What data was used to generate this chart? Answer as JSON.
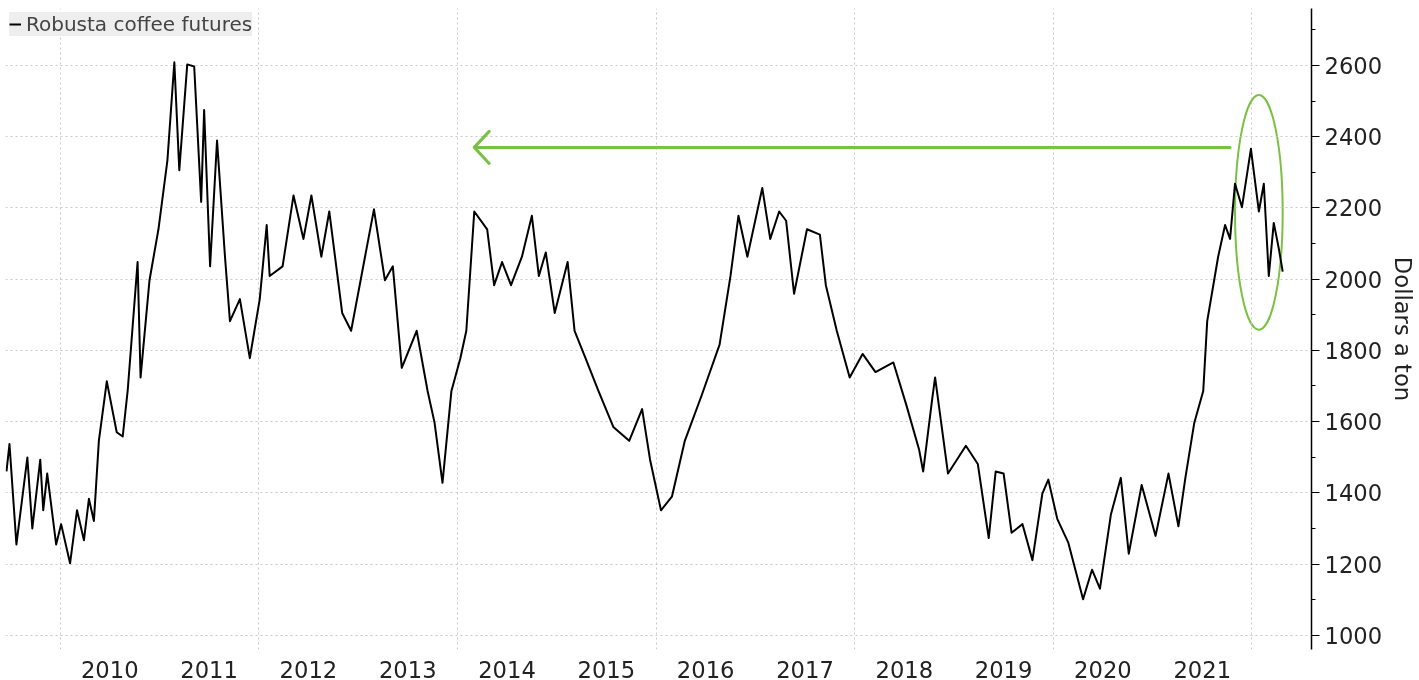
{
  "chart_data": {
    "type": "line",
    "ylabel": "Dollars a ton",
    "x": [
      2009.46,
      2009.49,
      2009.56,
      2009.67,
      2009.72,
      2009.8,
      2009.83,
      2009.87,
      2009.96,
      2010.01,
      2010.1,
      2010.17,
      2010.24,
      2010.29,
      2010.34,
      2010.39,
      2010.47,
      2010.57,
      2010.63,
      2010.68,
      2010.78,
      2010.81,
      2010.9,
      2010.99,
      2011.08,
      2011.15,
      2011.2,
      2011.28,
      2011.35,
      2011.42,
      2011.45,
      2011.51,
      2011.58,
      2011.66,
      2011.71,
      2011.81,
      2011.91,
      2012.01,
      2012.08,
      2012.11,
      2012.24,
      2012.35,
      2012.45,
      2012.53,
      2012.63,
      2012.71,
      2012.84,
      2012.93,
      2013.07,
      2013.16,
      2013.27,
      2013.35,
      2013.44,
      2013.59,
      2013.7,
      2013.77,
      2013.85,
      2013.94,
      2014.03,
      2014.09,
      2014.17,
      2014.3,
      2014.37,
      2014.45,
      2014.54,
      2014.65,
      2014.75,
      2014.82,
      2014.89,
      2014.98,
      2015.11,
      2015.18,
      2015.29,
      2015.42,
      2015.57,
      2015.73,
      2015.86,
      2015.94,
      2016.05,
      2016.16,
      2016.29,
      2016.46,
      2016.64,
      2016.75,
      2016.83,
      2016.92,
      2017.07,
      2017.15,
      2017.24,
      2017.31,
      2017.39,
      2017.52,
      2017.65,
      2017.71,
      2017.82,
      2017.95,
      2018.08,
      2018.21,
      2018.39,
      2018.52,
      2018.65,
      2018.69,
      2018.78,
      2018.81,
      2018.94,
      2019.12,
      2019.24,
      2019.35,
      2019.42,
      2019.5,
      2019.58,
      2019.69,
      2019.79,
      2019.89,
      2019.95,
      2020.04,
      2020.15,
      2020.3,
      2020.39,
      2020.47,
      2020.58,
      2020.68,
      2020.76,
      2020.89,
      2021.03,
      2021.16,
      2021.26,
      2021.33,
      2021.42,
      2021.51,
      2021.55,
      2021.66,
      2021.73,
      2021.78,
      2021.83,
      2021.9,
      2021.99,
      2022.07,
      2022.12,
      2022.17,
      2022.22,
      2022.27,
      2022.31
    ],
    "series": [
      {
        "name": "Robusta coffee futures",
        "color": "#000000",
        "values": [
          1460,
          1537,
          1255,
          1499,
          1300,
          1493,
          1351,
          1454,
          1255,
          1312,
          1202,
          1351,
          1267,
          1383,
          1321,
          1546,
          1713,
          1570,
          1558,
          1686,
          2048,
          1724,
          1997,
          2140,
          2333,
          2609,
          2306,
          2603,
          2597,
          2217,
          2475,
          2036,
          2389,
          2063,
          1882,
          1944,
          1778,
          1944,
          2152,
          2009,
          2036,
          2235,
          2113,
          2235,
          2063,
          2190,
          1905,
          1855,
          2063,
          2196,
          1997,
          2036,
          1751,
          1855,
          1686,
          1597,
          1428,
          1686,
          1778,
          1855,
          2190,
          2140,
          1983,
          2048,
          1983,
          2063,
          2178,
          2009,
          2075,
          1905,
          2048,
          1855,
          1778,
          1686,
          1585,
          1546,
          1635,
          1493,
          1351,
          1389,
          1546,
          1674,
          1816,
          2009,
          2178,
          2063,
          2256,
          2113,
          2190,
          2164,
          1959,
          2140,
          2125,
          1983,
          1855,
          1724,
          1790,
          1739,
          1766,
          1647,
          1520,
          1460,
          1662,
          1724,
          1454,
          1532,
          1481,
          1273,
          1460,
          1454,
          1288,
          1312,
          1211,
          1398,
          1437,
          1327,
          1261,
          1101,
          1184,
          1131,
          1339,
          1442,
          1229,
          1422,
          1279,
          1454,
          1306,
          1442,
          1597,
          1686,
          1882,
          2063,
          2152,
          2113,
          2268,
          2202,
          2366,
          2190,
          2268,
          2009,
          2158,
          2087,
          2021
        ]
      }
    ],
    "xlim": [
      2009.45,
      2022.6
    ],
    "xticks": [
      {
        "value": 2010.5,
        "label": "2010"
      },
      {
        "value": 2011.5,
        "label": "2011"
      },
      {
        "value": 2012.5,
        "label": "2012"
      },
      {
        "value": 2013.5,
        "label": "2013"
      },
      {
        "value": 2014.5,
        "label": "2014"
      },
      {
        "value": 2015.5,
        "label": "2015"
      },
      {
        "value": 2016.5,
        "label": "2016"
      },
      {
        "value": 2017.5,
        "label": "2017"
      },
      {
        "value": 2018.5,
        "label": "2018"
      },
      {
        "value": 2019.5,
        "label": "2019"
      },
      {
        "value": 2020.5,
        "label": "2020"
      },
      {
        "value": 2021.5,
        "label": "2021"
      },
      {
        "value": 2010,
        "label": null
      },
      {
        "value": 2012,
        "label": null
      },
      {
        "value": 2014,
        "label": null
      },
      {
        "value": 2016,
        "label": null
      },
      {
        "value": 2018,
        "label": null
      },
      {
        "value": 2020,
        "label": null
      },
      {
        "value": 2022,
        "label": null
      }
    ],
    "ylim": [
      960,
      2760
    ],
    "yticks": [
      1000,
      1200,
      1400,
      1600,
      1800,
      2000,
      2200,
      2400,
      2600,
      {
        "value": 1100,
        "label": null
      },
      {
        "value": 1300,
        "label": null
      },
      {
        "value": 1500,
        "label": null
      },
      {
        "value": 1700,
        "label": null
      },
      {
        "value": 1900,
        "label": null
      },
      {
        "value": 2100,
        "label": null
      },
      {
        "value": 2300,
        "label": null
      },
      {
        "value": 2500,
        "label": null
      },
      {
        "value": 2700,
        "label": null
      }
    ],
    "ref_lines": [
      {
        "axis": "y",
        "value": 2370,
        "color": "#7ac143"
      }
    ],
    "grid": true,
    "legend": "top left",
    "line_style": "solid",
    "marker": "none"
  }
}
